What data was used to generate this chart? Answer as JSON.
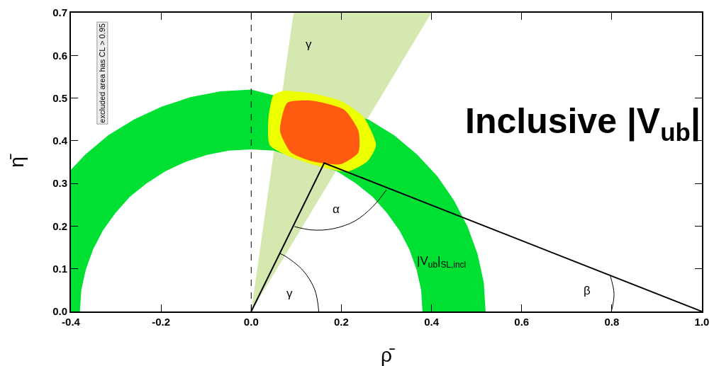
{
  "chart_data": {
    "type": "area",
    "xlabel": "ρ̄",
    "ylabel": "η̄",
    "xlim": [
      -0.4,
      1.0
    ],
    "ylim": [
      0,
      0.7
    ],
    "xticks": [
      {
        "value": -0.4,
        "label": "-0.4"
      },
      {
        "value": -0.2,
        "label": "-0.2"
      },
      {
        "value": 0,
        "label": "0.0"
      },
      {
        "value": 0.2,
        "label": "0.2"
      },
      {
        "value": 0.4,
        "label": "0.4"
      },
      {
        "value": 0.6,
        "label": "0.6"
      },
      {
        "value": 0.8,
        "label": "0.8"
      },
      {
        "value": 1.0,
        "label": "1.0"
      }
    ],
    "yticks": [
      {
        "value": 0,
        "label": "0.0"
      },
      0.1,
      0.2,
      0.3,
      0.4,
      0.5,
      0.6,
      0.7
    ],
    "grid": false,
    "series": [
      {
        "color": "#d4e8b0",
        "x": [
          0,
          0.094,
          0.4,
          0
        ],
        "values": [
          0,
          0.7,
          0.7,
          0
        ]
      },
      {
        "color": "#00e033",
        "x": [
          0.52,
          0.516,
          0.502,
          0.48,
          0.45,
          0.413,
          0.368,
          0.317,
          0.26,
          0,
          -0.068,
          -0.135,
          -0.199,
          -0.26,
          -0.317,
          -0.368,
          -0.4,
          -0.4,
          -0.38,
          -0.377,
          -0.367,
          -0.351,
          -0.329,
          -0.301,
          -0.269,
          -0.231,
          -0.19,
          -0.145,
          -0.098,
          -0.05,
          0,
          0.05,
          0.19,
          0.231,
          0.269,
          0.301,
          0.329,
          0.351,
          0.367,
          0.377,
          0.38,
          0.52
        ],
        "values": [
          0,
          0.068,
          0.135,
          0.199,
          0.26,
          0.317,
          0.368,
          0.413,
          0.45,
          0.52,
          0.516,
          0.502,
          0.48,
          0.45,
          0.413,
          0.368,
          0.332,
          0,
          0,
          0.05,
          0.098,
          0.145,
          0.19,
          0.231,
          0.269,
          0.301,
          0.329,
          0.351,
          0.367,
          0.377,
          0.38,
          0.377,
          0.329,
          0.301,
          0.269,
          0.231,
          0.19,
          0.145,
          0.098,
          0.05,
          0,
          0
        ]
      },
      {
        "color": "#eeff00",
        "x": [
          0.049,
          0.072,
          0.135,
          0.198,
          0.249,
          0.277,
          0.258,
          0.214,
          0.159,
          0.088,
          0.041,
          0.038,
          0.049
        ],
        "values": [
          0.506,
          0.517,
          0.511,
          0.494,
          0.456,
          0.39,
          0.352,
          0.328,
          0.338,
          0.362,
          0.39,
          0.448,
          0.506
        ]
      },
      {
        "color": "#ff5a10",
        "x": [
          0.08,
          0.135,
          0.206,
          0.238,
          0.238,
          0.198,
          0.135,
          0.088,
          0.064,
          0.08
        ],
        "values": [
          0.489,
          0.494,
          0.473,
          0.423,
          0.373,
          0.345,
          0.352,
          0.373,
          0.423,
          0.489
        ]
      },
      {
        "type": "line",
        "color": "#000000",
        "x": [
          0,
          0.162,
          1.0
        ],
        "values": [
          0,
          0.348,
          0
        ]
      },
      {
        "type": "line",
        "color": "#000000",
        "x": [
          0.15,
          0.141,
          0.115,
          0.075,
          0.063
        ],
        "values": [
          0,
          0.051,
          0.096,
          0.13,
          0.136
        ]
      },
      {
        "type": "line",
        "color": "#000000",
        "x": [
          0.096,
          0.135,
          0.182,
          0.23,
          0.269,
          0.3
        ],
        "values": [
          0.199,
          0.191,
          0.194,
          0.212,
          0.245,
          0.285
        ]
      },
      {
        "type": "line",
        "color": "#000000",
        "x": [
          0.796,
          0.805,
          0.799
        ],
        "values": [
          0.086,
          0.041,
          0
        ]
      }
    ],
    "ref_lines": [
      {
        "axis": "x",
        "value": 0,
        "line_style": "dashed",
        "color": "#000000"
      }
    ],
    "annotations": [
      "excluded area has CL > 0.95",
      "Inclusive |V$_{ub}$|",
      "γ",
      "α",
      "γ",
      "β",
      "|V$_{ub}$|$_{SL,incl}$"
    ]
  }
}
